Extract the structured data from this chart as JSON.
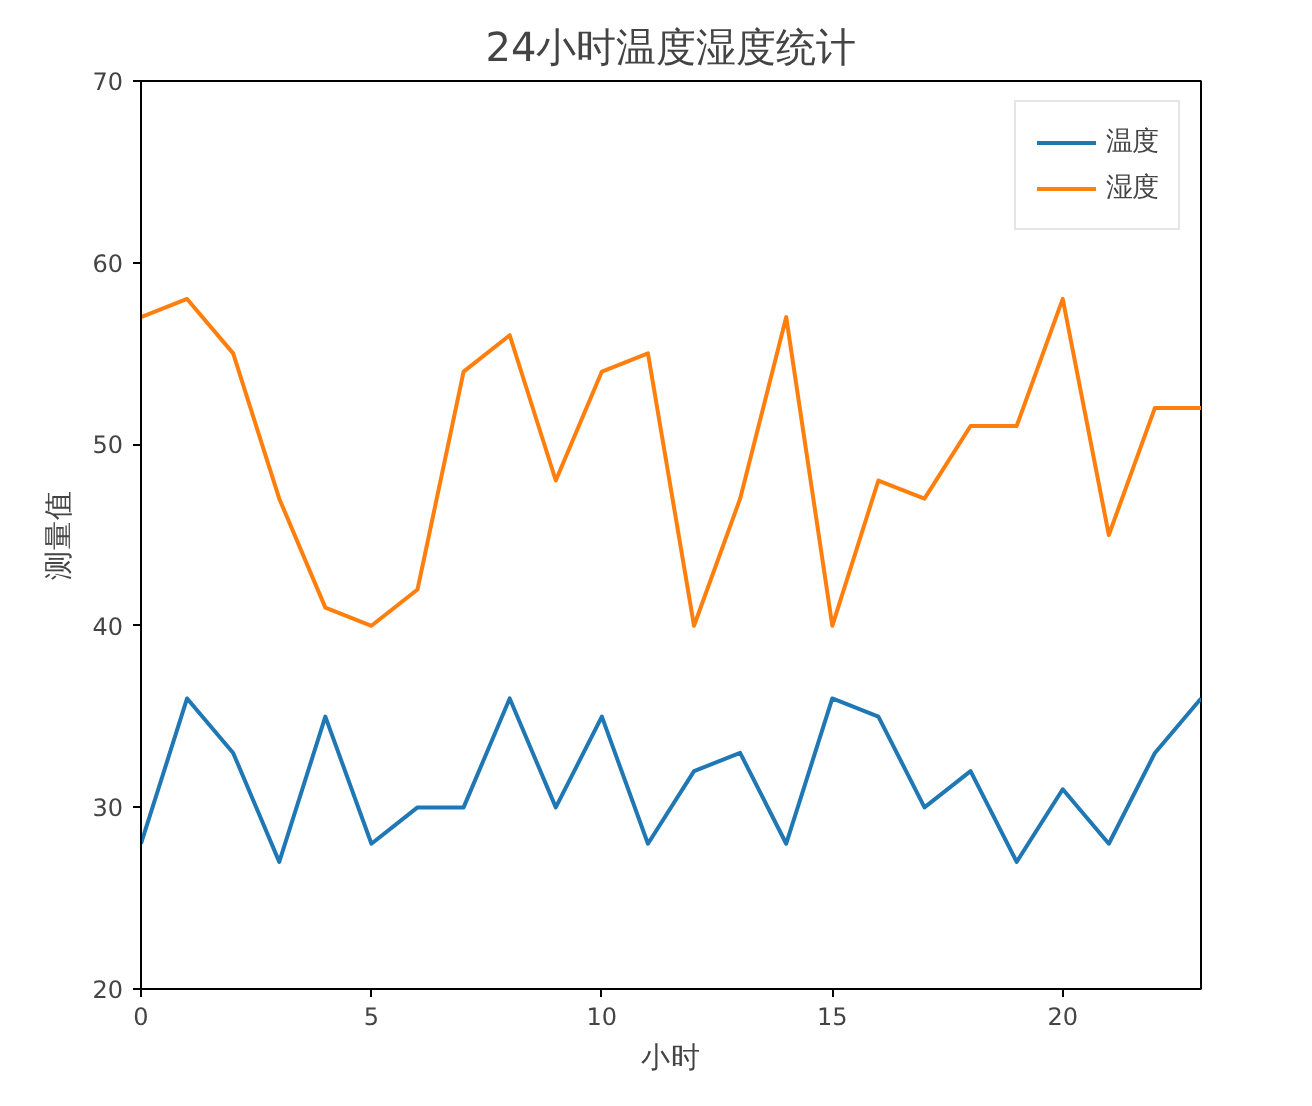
{
  "chart_data": {
    "type": "line",
    "title": "24小时温度湿度统计",
    "xlabel": "小时",
    "ylabel": "测量值",
    "x": [
      0,
      1,
      2,
      3,
      4,
      5,
      6,
      7,
      8,
      9,
      10,
      11,
      12,
      13,
      14,
      15,
      16,
      17,
      18,
      19,
      20,
      21,
      22,
      23
    ],
    "series": [
      {
        "name": "温度",
        "color": "#1f77b4",
        "values": [
          28,
          36,
          33,
          27,
          35,
          28,
          30,
          30,
          36,
          30,
          35,
          28,
          32,
          33,
          28,
          36,
          35,
          30,
          32,
          27,
          31,
          28,
          33,
          36
        ]
      },
      {
        "name": "湿度",
        "color": "#ff7f0e",
        "values": [
          57,
          58,
          55,
          47,
          41,
          40,
          42,
          54,
          56,
          48,
          54,
          55,
          40,
          47,
          57,
          40,
          48,
          47,
          51,
          51,
          58,
          45,
          52,
          52
        ]
      }
    ],
    "xlim": [
      0,
      23
    ],
    "xticks": [
      0,
      5,
      10,
      15,
      20
    ],
    "ylim": [
      20,
      70
    ],
    "yticks": [
      20,
      30,
      40,
      50,
      60,
      70
    ],
    "grid": false,
    "legend": "top right",
    "marker": "none",
    "line_style": "solid"
  }
}
